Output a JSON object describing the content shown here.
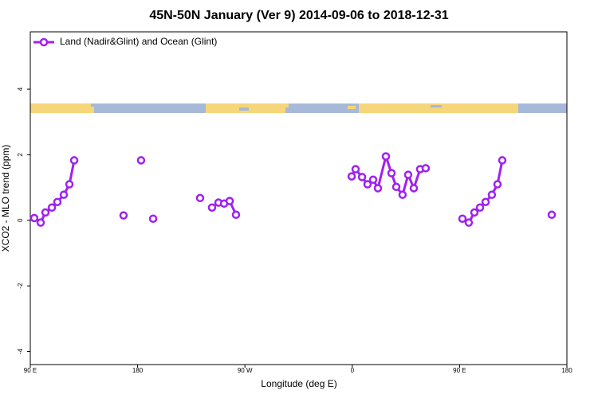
{
  "chart_data": {
    "type": "line",
    "title": "45N-50N January (Ver 9)   2014-09-06 to 2018-12-31",
    "x_label": "Longitude (deg E)",
    "y_label": "XCO2 - MLO trend (ppm)",
    "xlim": [
      90,
      540
    ],
    "ylim": [
      -4.4,
      5.75
    ],
    "xticks": [
      {
        "value": 90,
        "label": "90 E"
      },
      180,
      {
        "value": 270,
        "label": "90 W"
      },
      {
        "value": 360,
        "label": "0"
      },
      {
        "value": 450,
        "label": "90 E"
      },
      {
        "value": 540,
        "label": "180"
      }
    ],
    "yticks": [
      -4,
      -2,
      0,
      2,
      4
    ],
    "legend": "top-left",
    "grid": false,
    "series": [
      {
        "name": "Land (Nadir&Glint) and Ocean (Glint)",
        "color": "#a020f0",
        "x": [
          93.3,
          98.7,
          102.7,
          108.1,
          112.7,
          118.1,
          122.8,
          126.8,
          null,
          168.2,
          null,
          182.9,
          null,
          193,
          null,
          232.4,
          null,
          242.4,
          247.8,
          252.5,
          257.2,
          262.5,
          null,
          359.5,
          362.8,
          368.2,
          372.8,
          377.5,
          381.5,
          388.2,
          392.9,
          396.9,
          402.2,
          406.9,
          411.6,
          416.9,
          421.6,
          null,
          452.4,
          457.7,
          462.4,
          467.1,
          471.8,
          477.1,
          481.8,
          485.8,
          null,
          527.3
        ],
        "values": [
          0.07,
          -0.07,
          0.24,
          0.39,
          0.56,
          0.78,
          1.1,
          1.83,
          null,
          0.15,
          null,
          1.83,
          null,
          0.05,
          null,
          0.68,
          null,
          0.39,
          0.54,
          0.51,
          0.59,
          0.17,
          null,
          1.34,
          1.56,
          1.32,
          1.1,
          1.24,
          0.98,
          1.95,
          1.44,
          1.02,
          0.78,
          1.39,
          0.98,
          1.56,
          1.59,
          null,
          0.05,
          -0.07,
          0.24,
          0.39,
          0.56,
          0.78,
          1.1,
          1.83,
          null,
          0.17
        ]
      }
    ]
  }
}
